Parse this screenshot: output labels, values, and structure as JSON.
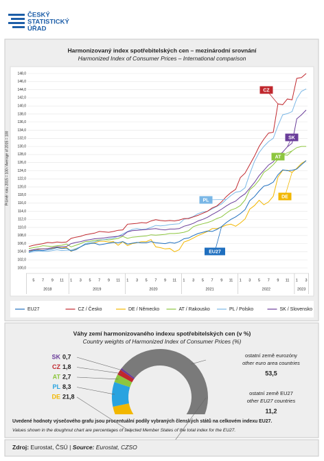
{
  "header": {
    "logo": [
      "ČESKÝ",
      "STATISTICKÝ",
      "ÚŘAD"
    ]
  },
  "chart_data": [
    {
      "type": "line",
      "title": "Harmonizovaný index spotřebitelských cen – mezinárodní srovnání",
      "subtitle": "Harmonized Index of Consumer Prices – International comparison",
      "ylabel": "Průměr roku 2015 = 100 / Average of 2015 = 100",
      "groups": [
        {
          "year": "2018",
          "months": [
            null,
            "5",
            null,
            "7",
            null,
            "9",
            null,
            "11",
            null
          ]
        },
        {
          "year": "2019",
          "months": [
            "1",
            null,
            "3",
            null,
            "5",
            null,
            "7",
            null,
            "9",
            null,
            "11",
            null
          ]
        },
        {
          "year": "2020",
          "months": [
            "1",
            null,
            "3",
            null,
            "5",
            null,
            "7",
            null,
            "9",
            null,
            "11",
            null
          ]
        },
        {
          "year": "2021",
          "months": [
            "1",
            null,
            "3",
            null,
            "5",
            null,
            "7",
            null,
            "9",
            null,
            "11",
            null
          ]
        },
        {
          "year": "2022",
          "months": [
            "1",
            null,
            "3",
            null,
            "5",
            null,
            "7",
            null,
            "9",
            null,
            "11",
            null
          ]
        },
        {
          "year": "2023",
          "months": [
            "1",
            null,
            "3"
          ]
        }
      ],
      "ylim": [
        100,
        148
      ],
      "yticks": [
        {
          "value": 100,
          "label": "100,0"
        },
        {
          "value": 102,
          "label": "102,0"
        },
        {
          "value": 104,
          "label": "104,0"
        },
        {
          "value": 106,
          "label": "106,0"
        },
        {
          "value": 108,
          "label": "108,0"
        },
        {
          "value": 110,
          "label": "110,0"
        },
        {
          "value": 112,
          "label": "112,0"
        },
        {
          "value": 114,
          "label": "114,0"
        },
        {
          "value": 116,
          "label": "116,0"
        },
        {
          "value": 118,
          "label": "118,0"
        },
        {
          "value": 120,
          "label": "120,0"
        },
        {
          "value": 122,
          "label": "122,0"
        },
        {
          "value": 124,
          "label": "124,0"
        },
        {
          "value": 126,
          "label": "126,0"
        },
        {
          "value": 128,
          "label": "128,0"
        },
        {
          "value": 130,
          "label": "130,0"
        },
        {
          "value": 132,
          "label": "132,0"
        },
        {
          "value": 134,
          "label": "134,0"
        },
        {
          "value": 136,
          "label": "136,0"
        },
        {
          "value": 138,
          "label": "138,0"
        },
        {
          "value": 140,
          "label": "140,0"
        },
        {
          "value": 142,
          "label": "142,0"
        },
        {
          "value": 144,
          "label": "144,0"
        },
        {
          "value": 146,
          "label": "146,0"
        },
        {
          "value": 148,
          "label": "148,0"
        }
      ],
      "grid": true,
      "series": [
        {
          "name": "EU27",
          "label": "EU27",
          "color": "#1f6fbf",
          "values": [
            104.0,
            104.3,
            104.4,
            104.3,
            104.5,
            104.7,
            105.0,
            104.8,
            104.9,
            104.2,
            104.5,
            105.2,
            105.8,
            106.0,
            106.1,
            105.7,
            105.9,
            106.1,
            106.3,
            106.2,
            106.5,
            105.9,
            106.1,
            106.3,
            106.2,
            106.2,
            106.5,
            106.2,
            106.1,
            106.0,
            106.3,
            106.1,
            106.5,
            107.2,
            107.4,
            108.0,
            108.5,
            108.8,
            109.1,
            109.0,
            109.5,
            110.2,
            111.2,
            112.0,
            112.6,
            113.4,
            114.4,
            116.6,
            117.6,
            119.0,
            120.2,
            120.5,
            121.2,
            123.0,
            124.2,
            124.0,
            124.1,
            124.4,
            125.5,
            126.5
          ]
        },
        {
          "name": "CZ / Česko",
          "label": "CZ",
          "color": "#c0272d",
          "values": [
            105.3,
            105.6,
            105.8,
            106.0,
            106.3,
            106.2,
            106.4,
            106.3,
            106.4,
            107.3,
            107.6,
            107.8,
            108.2,
            108.4,
            108.6,
            109.0,
            108.9,
            108.8,
            109.0,
            109.3,
            109.4,
            110.8,
            110.9,
            111.0,
            111.2,
            111.1,
            111.6,
            111.9,
            111.7,
            111.6,
            111.7,
            111.6,
            111.8,
            112.2,
            112.2,
            112.6,
            113.0,
            113.5,
            114.0,
            114.8,
            115.3,
            116.3,
            117.6,
            118.6,
            119.4,
            122.3,
            123.4,
            125.5,
            127.6,
            130.0,
            131.8,
            133.3,
            133.5,
            140.5,
            140.3,
            141.7,
            141.5,
            146.8,
            147.0,
            148.0
          ]
        },
        {
          "name": "DE / Německo",
          "label": "DE",
          "color": "#f2b700",
          "values": [
            104.0,
            104.5,
            104.6,
            104.7,
            104.8,
            104.9,
            105.1,
            104.9,
            105.1,
            104.1,
            104.7,
            105.2,
            105.8,
            106.0,
            106.2,
            106.6,
            106.6,
            106.4,
            106.5,
            105.6,
            106.5,
            105.5,
            106.0,
            106.2,
            106.5,
            106.5,
            107.0,
            105.2,
            105.0,
            104.7,
            104.8,
            104.0,
            104.5,
            106.4,
            106.8,
            107.4,
            108.0,
            108.5,
            109.0,
            109.7,
            109.7,
            110.1,
            110.6,
            110.8,
            110.3,
            111.1,
            112.1,
            114.5,
            115.4,
            116.7,
            115.6,
            116.3,
            117.7,
            122.4,
            124.1,
            124.1,
            123.6,
            124.6,
            125.8,
            126.5
          ]
        },
        {
          "name": "AT / Rakousko",
          "label": "AT",
          "color": "#8dc63f",
          "values": [
            104.8,
            105.0,
            105.2,
            105.5,
            105.4,
            105.3,
            105.5,
            105.6,
            105.9,
            105.2,
            105.6,
            106.0,
            106.5,
            106.6,
            106.8,
            106.9,
            107.0,
            106.9,
            107.1,
            107.3,
            107.8,
            107.3,
            107.6,
            107.7,
            107.8,
            107.9,
            108.2,
            108.1,
            108.2,
            108.3,
            108.5,
            108.5,
            108.6,
            108.8,
            109.2,
            110.2,
            110.6,
            110.9,
            111.2,
            111.6,
            112.2,
            112.6,
            113.5,
            114.3,
            114.7,
            115.4,
            116.8,
            119.3,
            120.3,
            121.7,
            123.6,
            124.4,
            125.5,
            126.8,
            128.0,
            127.8,
            128.9,
            129.7,
            130.0,
            130.0
          ]
        },
        {
          "name": "PL / Polsko",
          "label": "PL",
          "color": "#7ab7e6",
          "values": [
            103.8,
            104.0,
            104.2,
            104.1,
            104.1,
            104.3,
            104.5,
            104.3,
            104.4,
            104.4,
            104.8,
            105.2,
            106.0,
            106.3,
            106.5,
            106.8,
            107.0,
            107.2,
            107.4,
            107.8,
            108.4,
            109.0,
            109.5,
            109.7,
            109.5,
            109.6,
            110.0,
            110.5,
            110.4,
            110.5,
            110.7,
            110.8,
            110.9,
            112.0,
            112.3,
            112.7,
            113.4,
            113.8,
            114.0,
            114.6,
            115.2,
            115.8,
            116.9,
            117.9,
            118.7,
            118.9,
            119.8,
            123.2,
            126.3,
            128.5,
            130.0,
            131.2,
            132.0,
            135.1,
            137.8,
            138.1,
            138.6,
            141.8,
            143.6,
            144.2
          ]
        },
        {
          "name": "SK / Slovensko",
          "label": "SK",
          "color": "#6a3d9a",
          "values": [
            104.3,
            104.5,
            104.7,
            104.7,
            104.8,
            105.0,
            105.2,
            105.2,
            105.3,
            106.0,
            106.3,
            106.5,
            106.8,
            107.0,
            107.2,
            107.3,
            107.4,
            107.6,
            107.7,
            107.8,
            108.0,
            108.9,
            109.2,
            109.3,
            109.4,
            109.5,
            109.6,
            109.7,
            109.5,
            109.4,
            109.6,
            109.6,
            109.7,
            110.3,
            110.6,
            111.0,
            111.6,
            112.0,
            112.5,
            113.2,
            113.8,
            114.5,
            115.3,
            116.0,
            116.5,
            117.5,
            118.3,
            119.7,
            121.1,
            122.8,
            124.1,
            125.4,
            126.2,
            127.7,
            128.6,
            129.9,
            130.8,
            136.8,
            137.8,
            139.0
          ]
        }
      ]
    },
    {
      "type": "pie",
      "title": "Váhy zemí harmonizovaného indexu spotřebitelských cen (v %)",
      "subtitle": "Country weights of Harmonized Index of Consumer Prices (%)",
      "categories": [
        "SK",
        "CZ",
        "AT",
        "PL",
        "DE",
        "ostatní země eurozóny",
        "ostatní země EU27"
      ],
      "subnames": [
        null,
        null,
        null,
        null,
        null,
        "other euro area countries",
        "other EU27 countries"
      ],
      "values": [
        0.7,
        1.8,
        2.7,
        8.3,
        21.8,
        53.5,
        11.2
      ],
      "value_labels": [
        "0,7",
        "1,8",
        "2,7",
        "8,3",
        "21,8",
        "53,5",
        "11,2"
      ],
      "colors": [
        "#6a3d9a",
        "#c0272d",
        "#8dc63f",
        "#29a3e0",
        "#f2b700",
        "#7a7a7a",
        "#b8b8b8"
      ]
    }
  ],
  "note": {
    "cz": "Uvedené hodnoty výsečového grafu jsou procentuální podíly vybraných členských států na celkovém indexu EU27.",
    "en": "Values shown in the doughnut chart are percentages of selected Member States of the total index for the EU27."
  },
  "source": [
    "Zdroj:",
    "Eurostat, ČSÚ |",
    "Source:",
    "Eurostat, CZSO"
  ]
}
